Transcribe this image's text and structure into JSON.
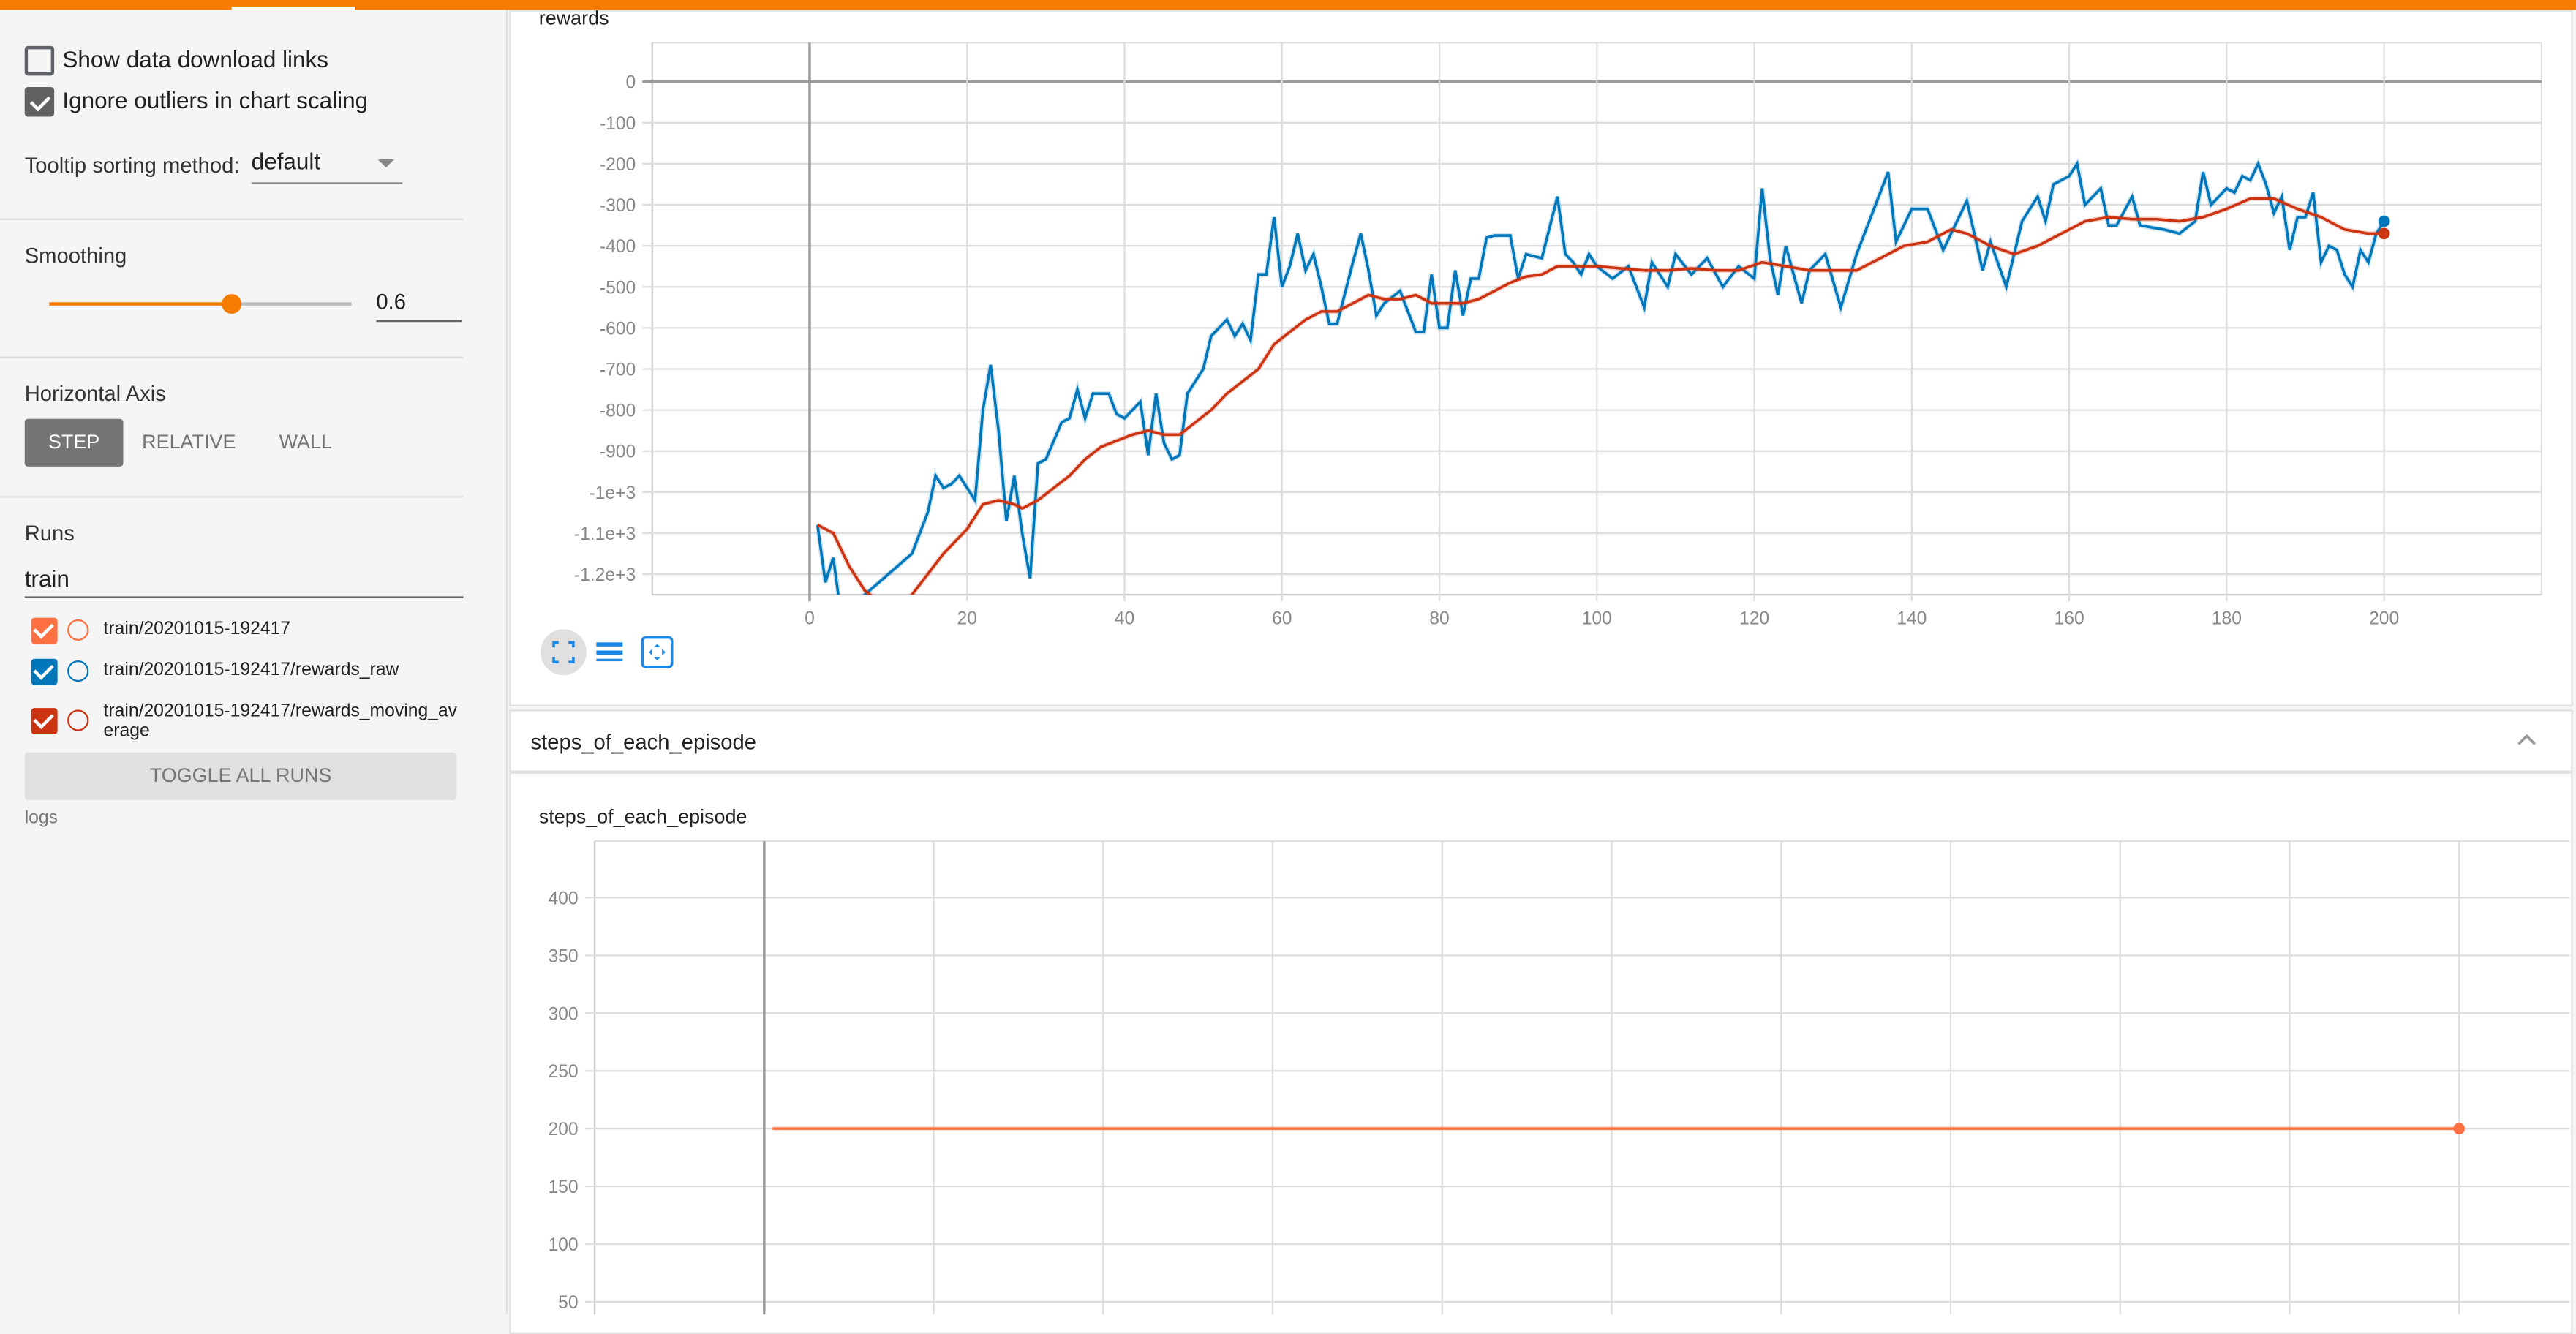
{
  "sidebar": {
    "show_download_links": {
      "label": "Show data download links",
      "checked": false
    },
    "ignore_outliers": {
      "label": "Ignore outliers in chart scaling",
      "checked": true
    },
    "tooltip_sorting": {
      "label": "Tooltip sorting method:",
      "value": "default"
    },
    "smoothing": {
      "label": "Smoothing",
      "value": "0.6",
      "fraction": 0.6
    },
    "horizontal_axis": {
      "label": "Horizontal Axis",
      "options": [
        "STEP",
        "RELATIVE",
        "WALL"
      ],
      "selected": "STEP"
    },
    "runs": {
      "label": "Runs",
      "filter": "train",
      "items": [
        {
          "label": "train/20201015-192417",
          "color": "#ff7043",
          "checked": true
        },
        {
          "label": "train/20201015-192417/rewards_raw",
          "color": "#0077bb",
          "checked": true
        },
        {
          "label": "train/20201015-192417/rewards_moving_average",
          "color": "#cc3311",
          "checked": true
        }
      ],
      "toggle_all": "TOGGLE ALL RUNS",
      "logdir": "logs"
    }
  },
  "main": {
    "section_header": "steps_of_each_episode",
    "icons": [
      "fit-domain-icon",
      "toggle-log-scale-icon",
      "expand-chart-icon",
      "chevron-up-icon"
    ]
  },
  "chart_data": [
    {
      "type": "line",
      "title": "rewards",
      "xlim": [
        -20,
        220
      ],
      "ylim": [
        -1250,
        95
      ],
      "x_ticks": [
        0,
        20,
        40,
        60,
        80,
        100,
        120,
        140,
        160,
        180,
        200
      ],
      "x_tick_labels": [
        "0",
        "20",
        "40",
        "60",
        "80",
        "100",
        "120",
        "140",
        "160",
        "180",
        "200"
      ],
      "y_ticks": [
        0,
        -100,
        -200,
        -300,
        -400,
        -500,
        -600,
        -700,
        -800,
        -900,
        -1000,
        -1100,
        -1200
      ],
      "y_tick_labels": [
        "0",
        "-100",
        "-200",
        "-300",
        "-400",
        "-500",
        "-600",
        "-700",
        "-800",
        "-900",
        "-1e+3",
        "-1.1e+3",
        "-1.2e+3"
      ],
      "grid": true,
      "series": [
        {
          "name": "train/20201015-192417/rewards_raw",
          "color": "#0077bb",
          "x": [
            1,
            2,
            3,
            4,
            13,
            15,
            16,
            17,
            18,
            19,
            20,
            21,
            22,
            23,
            24,
            25,
            26,
            27,
            28,
            29,
            30,
            32,
            33,
            34,
            35,
            36,
            38,
            39,
            40,
            42,
            43,
            44,
            45,
            46,
            47,
            48,
            50,
            51,
            53,
            54,
            55,
            56,
            57,
            58,
            59,
            60,
            61,
            62,
            63,
            64,
            65,
            66,
            67,
            69,
            70,
            71,
            72,
            73,
            75,
            77,
            78,
            79,
            80,
            81,
            82,
            83,
            84,
            85,
            86,
            87,
            89,
            90,
            91,
            93,
            95,
            96,
            97,
            98,
            99,
            100,
            102,
            104,
            106,
            107,
            109,
            110,
            112,
            114,
            116,
            118,
            120,
            121,
            122,
            123,
            124,
            126,
            127,
            129,
            131,
            133,
            135,
            137,
            138,
            140,
            142,
            144,
            146,
            147,
            149,
            150,
            152,
            154,
            156,
            157,
            158,
            160,
            161,
            162,
            164,
            165,
            166,
            168,
            169,
            172,
            174,
            176,
            177,
            178,
            180,
            181,
            182,
            183,
            184,
            185,
            186,
            187,
            188,
            189,
            190,
            191,
            192,
            193,
            194,
            195,
            196,
            197,
            198,
            199,
            200
          ],
          "y": [
            -1080,
            -1220,
            -1160,
            -1300,
            -1150,
            -1050,
            -960,
            -990,
            -980,
            -960,
            -990,
            -1020,
            -800,
            -690,
            -850,
            -1070,
            -960,
            -1100,
            -1210,
            -930,
            -920,
            -830,
            -820,
            -750,
            -820,
            -760,
            -760,
            -810,
            -820,
            -780,
            -910,
            -760,
            -880,
            -920,
            -910,
            -760,
            -700,
            -620,
            -580,
            -620,
            -590,
            -630,
            -470,
            -470,
            -330,
            -500,
            -450,
            -370,
            -460,
            -420,
            -500,
            -590,
            -590,
            -440,
            -370,
            -460,
            -570,
            -540,
            -510,
            -610,
            -610,
            -470,
            -600,
            -600,
            -460,
            -570,
            -480,
            -480,
            -380,
            -375,
            -375,
            -480,
            -420,
            -430,
            -280,
            -420,
            -440,
            -470,
            -420,
            -450,
            -480,
            -450,
            -550,
            -440,
            -500,
            -420,
            -470,
            -430,
            -500,
            -450,
            -480,
            -260,
            -430,
            -520,
            -400,
            -540,
            -460,
            -420,
            -550,
            -420,
            -320,
            -220,
            -390,
            -310,
            -310,
            -410,
            -330,
            -290,
            -460,
            -390,
            -500,
            -340,
            -280,
            -340,
            -250,
            -230,
            -200,
            -300,
            -260,
            -350,
            -350,
            -280,
            -350,
            -360,
            -370,
            -340,
            -220,
            -300,
            -260,
            -270,
            -230,
            -240,
            -200,
            -250,
            -320,
            -280,
            -410,
            -330,
            -330,
            -270,
            -440,
            -400,
            -410,
            -470,
            -500,
            -410,
            -440,
            -370,
            -340
          ]
        },
        {
          "name": "train/20201015-192417/rewards_moving_average",
          "color": "#cc3311",
          "x": [
            1,
            3,
            5,
            7,
            9,
            11,
            13,
            15,
            17,
            19,
            20,
            22,
            24,
            26,
            27,
            29,
            31,
            33,
            35,
            37,
            39,
            41,
            43,
            45,
            47,
            49,
            51,
            53,
            55,
            57,
            59,
            61,
            63,
            65,
            67,
            69,
            71,
            73,
            75,
            77,
            79,
            81,
            83,
            85,
            87,
            89,
            91,
            93,
            95,
            97,
            100,
            103,
            106,
            109,
            112,
            115,
            118,
            121,
            124,
            127,
            130,
            133,
            136,
            139,
            142,
            145,
            147,
            150,
            153,
            156,
            159,
            162,
            165,
            168,
            171,
            174,
            177,
            180,
            183,
            186,
            189,
            192,
            195,
            198,
            200
          ],
          "y": [
            -1080,
            -1100,
            -1180,
            -1240,
            -1270,
            -1280,
            -1250,
            -1200,
            -1150,
            -1110,
            -1090,
            -1030,
            -1020,
            -1030,
            -1040,
            -1020,
            -990,
            -960,
            -920,
            -890,
            -875,
            -860,
            -850,
            -860,
            -860,
            -830,
            -800,
            -760,
            -730,
            -700,
            -640,
            -610,
            -580,
            -560,
            -560,
            -540,
            -520,
            -530,
            -530,
            -520,
            -540,
            -540,
            -540,
            -530,
            -510,
            -490,
            -475,
            -470,
            -450,
            -450,
            -450,
            -455,
            -460,
            -460,
            -455,
            -460,
            -460,
            -440,
            -450,
            -460,
            -460,
            -460,
            -430,
            -400,
            -390,
            -360,
            -370,
            -400,
            -420,
            -400,
            -370,
            -340,
            -330,
            -335,
            -335,
            -340,
            -330,
            -310,
            -285,
            -285,
            -310,
            -330,
            -360,
            -370,
            -370
          ]
        }
      ]
    },
    {
      "type": "line",
      "title": "steps_of_each_episode",
      "xlim": [
        -20,
        220
      ],
      "ylim": [
        25,
        449
      ],
      "x_ticks": [
        0,
        20,
        40,
        60,
        80,
        100,
        120,
        140,
        160,
        180,
        200
      ],
      "y_ticks": [
        400,
        350,
        300,
        250,
        200,
        150,
        100,
        50
      ],
      "y_tick_labels": [
        "400",
        "350",
        "300",
        "250",
        "200",
        "150",
        "100",
        "50"
      ],
      "grid": true,
      "series": [
        {
          "name": "train/20201015-192417",
          "color": "#ff7043",
          "x": [
            1,
            200
          ],
          "y": [
            200,
            200
          ]
        }
      ]
    }
  ]
}
